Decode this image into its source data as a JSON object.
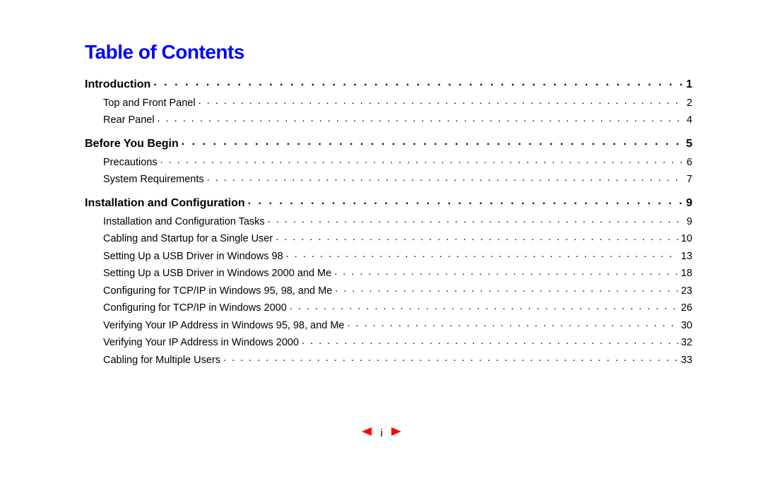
{
  "title": "Table of Contents",
  "sections": [
    {
      "label": "Introduction",
      "page": "1",
      "subs": [
        {
          "label": "Top and Front Panel",
          "page": "2"
        },
        {
          "label": "Rear Panel",
          "page": "4"
        }
      ]
    },
    {
      "label": "Before You Begin",
      "page": "5",
      "subs": [
        {
          "label": "Precautions",
          "page": "6"
        },
        {
          "label": "System Requirements",
          "page": "7"
        }
      ]
    },
    {
      "label": "Installation and Configuration",
      "page": "9",
      "subs": [
        {
          "label": "Installation and Configuration Tasks",
          "page": "9"
        },
        {
          "label": "Cabling and Startup for a Single User",
          "page": "10"
        },
        {
          "label": "Setting Up a USB Driver in Windows 98",
          "page": "13"
        },
        {
          "label": "Setting Up a USB Driver in Windows 2000 and Me",
          "page": "18"
        },
        {
          "label": "Configuring for TCP/IP in Windows 95, 98, and Me",
          "page": "23"
        },
        {
          "label": "Configuring for TCP/IP in Windows 2000",
          "page": "26"
        },
        {
          "label": "Verifying Your IP Address in Windows 95, 98, and Me",
          "page": "30"
        },
        {
          "label": "Verifying Your IP Address in Windows 2000",
          "page": "32"
        },
        {
          "label": "Cabling for Multiple Users",
          "page": "33"
        }
      ]
    }
  ],
  "nav": {
    "prev_icon": "prev-arrow",
    "next_icon": "next-arrow",
    "page_label": "i"
  },
  "colors": {
    "title": "#0000ff",
    "text": "#000000",
    "arrow": "#ff0000",
    "background": "#ffffff"
  },
  "typography": {
    "title_fontsize": 28,
    "section_fontsize": 16,
    "sub_fontsize": 14.5,
    "font_family": "Arial"
  }
}
